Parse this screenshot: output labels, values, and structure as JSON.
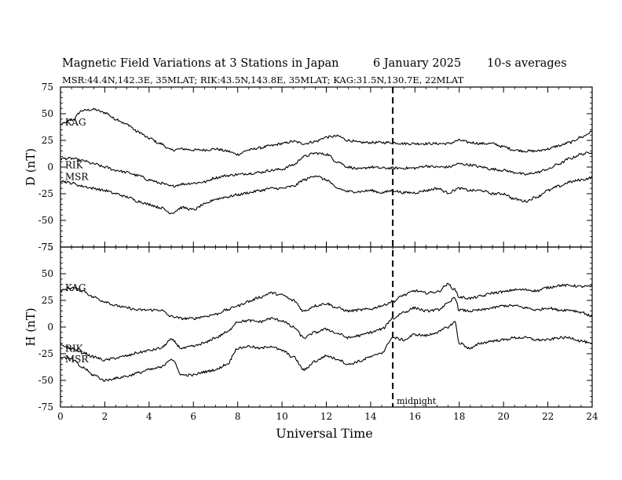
{
  "chart_data": {
    "type": "line",
    "title": "Magnetic Field Variations at 3 Stations in Japan",
    "date": "6   January  2025",
    "averaging": "10-s averages",
    "stations_line": "MSR:44.4N,142.3E, 35MLAT;  RIK:43.5N,143.8E, 35MLAT;  KAG:31.5N,130.7E, 22MLAT",
    "xlabel": "Universal Time",
    "xlim": [
      0,
      24
    ],
    "xticks": [
      0,
      2,
      4,
      6,
      8,
      10,
      12,
      14,
      16,
      18,
      20,
      22,
      24
    ],
    "midnight": {
      "x": 15,
      "label": "midnight"
    },
    "panels": [
      {
        "ylabel": "D (nT)",
        "ylim": [
          -75,
          75
        ],
        "yticks": [
          -75,
          -50,
          -25,
          0,
          25,
          50,
          75
        ],
        "series": [
          {
            "name": "KAG",
            "label_at": [
              0.1,
              39
            ],
            "x": [
              0,
              0.5,
              1,
              1.5,
              2,
              2.5,
              3,
              3.5,
              4,
              4.5,
              5,
              5.5,
              6,
              6.5,
              7,
              7.5,
              8,
              8.5,
              9,
              9.5,
              10,
              10.5,
              11,
              11.5,
              12,
              12.5,
              13,
              13.5,
              14,
              14.5,
              15,
              15.5,
              16,
              16.5,
              17,
              17.5,
              18,
              18.5,
              19,
              19.5,
              20,
              20.5,
              21,
              21.5,
              22,
              22.5,
              23,
              23.5,
              24
            ],
            "y": [
              40,
              44,
              53,
              54,
              51,
              45,
              40,
              33,
              27,
              22,
              16,
              17,
              16,
              16,
              17,
              15,
              12,
              16,
              18,
              20,
              22,
              24,
              22,
              24,
              28,
              29,
              25,
              23,
              23,
              23,
              23,
              22,
              22,
              22,
              22,
              22,
              25,
              23,
              22,
              22,
              19,
              16,
              15,
              15,
              17,
              20,
              23,
              28,
              33
            ]
          },
          {
            "name": "RIK",
            "label_at": [
              0.1,
              -1
            ],
            "x": [
              0,
              0.5,
              1,
              1.5,
              2,
              2.5,
              3,
              3.5,
              4,
              4.5,
              5,
              5.5,
              6,
              6.5,
              7,
              7.5,
              8,
              8.5,
              9,
              9.5,
              10,
              10.5,
              11,
              11.5,
              12,
              12.5,
              13,
              13.5,
              14,
              14.5,
              15,
              15.5,
              16,
              16.5,
              17,
              17.5,
              18,
              18.5,
              19,
              19.5,
              20,
              20.5,
              21,
              21.5,
              22,
              22.5,
              23,
              23.5,
              24
            ],
            "y": [
              8,
              8,
              6,
              3,
              0,
              -3,
              -5,
              -8,
              -12,
              -15,
              -18,
              -16,
              -15,
              -14,
              -10,
              -8,
              -7,
              -6,
              -5,
              -3,
              -2,
              2,
              10,
              13,
              12,
              5,
              0,
              -2,
              0,
              -1,
              -1,
              -1,
              -1,
              1,
              0,
              0,
              3,
              2,
              0,
              -2,
              -3,
              -5,
              -7,
              -5,
              -2,
              3,
              8,
              12,
              14
            ]
          },
          {
            "name": "MSR",
            "label_at": [
              0.1,
              -12
            ],
            "x": [
              0,
              0.5,
              1,
              1.5,
              2,
              2.5,
              3,
              3.5,
              4,
              4.5,
              5,
              5.5,
              6,
              6.5,
              7,
              7.5,
              8,
              8.5,
              9,
              9.5,
              10,
              10.5,
              11,
              11.5,
              12,
              12.5,
              13,
              13.5,
              14,
              14.5,
              15,
              15.5,
              16,
              16.5,
              17,
              17.5,
              18,
              18.5,
              19,
              19.5,
              20,
              20.5,
              21,
              21.5,
              22,
              22.5,
              23,
              23.5,
              24
            ],
            "y": [
              -13,
              -15,
              -18,
              -20,
              -22,
              -25,
              -28,
              -32,
              -35,
              -38,
              -43,
              -38,
              -40,
              -35,
              -30,
              -28,
              -26,
              -24,
              -22,
              -20,
              -20,
              -18,
              -12,
              -8,
              -12,
              -20,
              -23,
              -23,
              -22,
              -24,
              -22,
              -24,
              -24,
              -22,
              -20,
              -24,
              -20,
              -22,
              -22,
              -25,
              -25,
              -30,
              -32,
              -28,
              -22,
              -18,
              -14,
              -12,
              -10
            ]
          }
        ]
      },
      {
        "ylabel": "H (nT)",
        "ylim": [
          -75,
          75
        ],
        "yticks": [
          -75,
          -50,
          -25,
          0,
          25,
          50,
          75
        ],
        "series": [
          {
            "name": "KAG",
            "label_at": [
              0.1,
              34
            ],
            "x": [
              0,
              0.5,
              1,
              1.5,
              2,
              2.5,
              3,
              3.5,
              4,
              4.5,
              5,
              5.5,
              6,
              6.5,
              7,
              7.5,
              8,
              8.5,
              9,
              9.5,
              10,
              10.5,
              11,
              11.5,
              12,
              12.5,
              13,
              13.5,
              14,
              14.5,
              15,
              15.5,
              16,
              16.5,
              17,
              17.5,
              17.8,
              18,
              18.5,
              19,
              19.5,
              20,
              20.5,
              21,
              21.5,
              22,
              22.5,
              23,
              23.5,
              24
            ],
            "y": [
              34,
              37,
              34,
              28,
              24,
              20,
              18,
              16,
              16,
              16,
              10,
              8,
              8,
              10,
              12,
              16,
              20,
              24,
              28,
              32,
              30,
              25,
              15,
              20,
              22,
              18,
              15,
              16,
              17,
              20,
              24,
              30,
              34,
              32,
              33,
              40,
              35,
              28,
              27,
              29,
              32,
              33,
              35,
              35,
              34,
              37,
              39,
              39,
              38,
              38
            ]
          },
          {
            "name": "RIK",
            "label_at": [
              0.1,
              -23
            ],
            "x": [
              0,
              0.5,
              1,
              1.5,
              2,
              2.5,
              3,
              3.5,
              4,
              4.5,
              5,
              5.5,
              6,
              6.5,
              7,
              7.5,
              8,
              8.5,
              9,
              9.5,
              10,
              10.5,
              11,
              11.5,
              12,
              12.5,
              13,
              13.5,
              14,
              14.5,
              15,
              15.5,
              16,
              16.5,
              17,
              17.5,
              17.8,
              18,
              18.5,
              19,
              19.5,
              20,
              20.5,
              21,
              21.5,
              22,
              22.5,
              23,
              23.5,
              24
            ],
            "y": [
              -17,
              -20,
              -24,
              -28,
              -31,
              -29,
              -27,
              -24,
              -22,
              -20,
              -12,
              -20,
              -18,
              -15,
              -10,
              -5,
              5,
              6,
              5,
              8,
              6,
              0,
              -10,
              -5,
              -2,
              -6,
              -10,
              -8,
              -5,
              -2,
              8,
              14,
              18,
              15,
              16,
              22,
              28,
              16,
              15,
              16,
              18,
              20,
              20,
              18,
              16,
              18,
              16,
              16,
              14,
              10
            ]
          },
          {
            "name": "MSR",
            "label_at": [
              0.1,
              -33
            ],
            "x": [
              0,
              0.5,
              1,
              1.5,
              2,
              2.5,
              3,
              3.5,
              4,
              4.5,
              5,
              5.5,
              6,
              6.5,
              7,
              7.5,
              8,
              8.5,
              9,
              9.5,
              10,
              10.5,
              11,
              11.5,
              12,
              12.5,
              13,
              13.5,
              14,
              14.5,
              15,
              15.5,
              16,
              16.5,
              17,
              17.5,
              17.8,
              18,
              18.5,
              19,
              19.5,
              20,
              20.5,
              21,
              21.5,
              22,
              22.5,
              23,
              23.5,
              24
            ],
            "y": [
              -28,
              -30,
              -38,
              -45,
              -50,
              -48,
              -46,
              -43,
              -40,
              -38,
              -30,
              -45,
              -45,
              -42,
              -40,
              -35,
              -20,
              -18,
              -20,
              -18,
              -22,
              -28,
              -40,
              -32,
              -27,
              -30,
              -35,
              -32,
              -28,
              -24,
              -10,
              -12,
              -7,
              -8,
              -5,
              0,
              5,
              -15,
              -20,
              -15,
              -13,
              -12,
              -10,
              -10,
              -12,
              -12,
              -10,
              -10,
              -13,
              -16
            ]
          }
        ]
      }
    ]
  }
}
